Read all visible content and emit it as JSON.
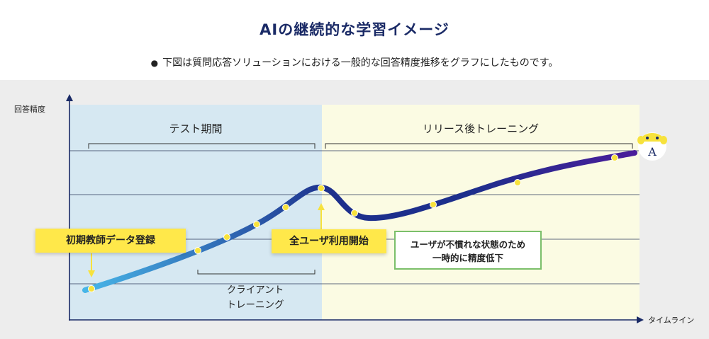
{
  "header": {
    "title": "AIの継続的な学習イメージ",
    "subtitle": "下図は質問応答ソリューションにおける一般的な回答精度推移をグラフにしたものです。"
  },
  "axes": {
    "y_label": "回答精度",
    "x_label": "タイムライン"
  },
  "phases": {
    "test": "テスト期間",
    "release": "リリース後トレーニング"
  },
  "annotations": {
    "initial_data": "初期教師データ登録",
    "client_training_line1": "クライアント",
    "client_training_line2": "トレーニング",
    "all_users_start": "全ユーザ利用開始",
    "dip_line1": "ユーザが不慣れな状態のため",
    "dip_line2": "一時的に精度低下"
  },
  "colors": {
    "test_region": "#d6e8f2",
    "release_region": "#fbfbe3",
    "curve_start": "#48b6e8",
    "curve_mid": "#1d2f8c",
    "curve_end": "#4a1d9a",
    "marker": "#f7e23c",
    "callout_yellow": "#ffe84a",
    "callout_border": "#7bbf6a",
    "title": "#1a2a66"
  },
  "icons": {
    "mascot": "robot-mascot-icon",
    "mascot_letter": "A"
  }
}
